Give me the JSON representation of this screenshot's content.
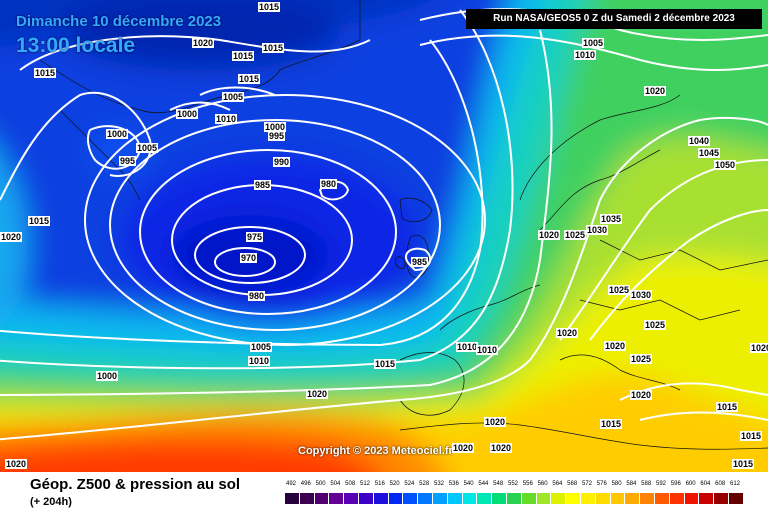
{
  "header": {
    "date_line": "Dimanche 10 décembre 2023",
    "time_line": "13:00 locale",
    "run_info": "Run NASA/GEOS5 0 Z du Samedi 2 décembre 2023"
  },
  "copyright": "Copyright © 2023 Meteociel.fr",
  "footer": {
    "title": "Géop. Z500 & pression au sol",
    "lead_time": "(+ 204h)"
  },
  "legend": {
    "ticks": [
      "492",
      "496",
      "500",
      "504",
      "508",
      "512",
      "516",
      "520",
      "524",
      "528",
      "532",
      "536",
      "540",
      "544",
      "548",
      "552",
      "556",
      "560",
      "564",
      "568",
      "572",
      "576",
      "580",
      "584",
      "588",
      "592",
      "596",
      "600",
      "604",
      "608",
      "612"
    ],
    "colors": [
      "#28003c",
      "#3c0050",
      "#50006e",
      "#640096",
      "#5a00b4",
      "#3c00c8",
      "#1e10dc",
      "#0028f0",
      "#0050ff",
      "#0078ff",
      "#00a0ff",
      "#00c8ff",
      "#00e6e6",
      "#00e6b4",
      "#00dc78",
      "#28d250",
      "#64dc28",
      "#a0e628",
      "#dcf000",
      "#ffff00",
      "#fff000",
      "#ffdc00",
      "#ffc800",
      "#ffaa00",
      "#ff8200",
      "#ff5a00",
      "#ff3200",
      "#f01400",
      "#c80000",
      "#960000",
      "#640000"
    ]
  },
  "isobar_labels": [
    {
      "text": "1015"
    },
    {
      "text": "1020"
    },
    {
      "text": "1015"
    },
    {
      "text": "1015"
    },
    {
      "text": "1015"
    },
    {
      "text": "1005"
    },
    {
      "text": "1000"
    },
    {
      "text": "1010"
    },
    {
      "text": "1000"
    },
    {
      "text": "995"
    },
    {
      "text": "1005"
    },
    {
      "text": "1000"
    },
    {
      "text": "995"
    },
    {
      "text": "990"
    },
    {
      "text": "985"
    },
    {
      "text": "980"
    },
    {
      "text": "975"
    },
    {
      "text": "970"
    },
    {
      "text": "980"
    },
    {
      "text": "985"
    },
    {
      "text": "1015"
    },
    {
      "text": "1020"
    },
    {
      "text": "1005"
    },
    {
      "text": "1010"
    },
    {
      "text": "1000"
    },
    {
      "text": "1020"
    },
    {
      "text": "1015"
    },
    {
      "text": "1010"
    },
    {
      "text": "1010"
    },
    {
      "text": "1020"
    },
    {
      "text": "1020"
    },
    {
      "text": "1020"
    },
    {
      "text": "1015"
    },
    {
      "text": "1005"
    },
    {
      "text": "1010"
    },
    {
      "text": "1020"
    },
    {
      "text": "1040"
    },
    {
      "text": "1045"
    },
    {
      "text": "1050"
    },
    {
      "text": "1035"
    },
    {
      "text": "1020"
    },
    {
      "text": "1025"
    },
    {
      "text": "1030"
    },
    {
      "text": "1025"
    },
    {
      "text": "1030"
    },
    {
      "text": "1025"
    },
    {
      "text": "1020"
    },
    {
      "text": "1020"
    },
    {
      "text": "1025"
    },
    {
      "text": "1020"
    },
    {
      "text": "1015"
    },
    {
      "text": "1015"
    },
    {
      "text": "1015"
    },
    {
      "text": "1015"
    },
    {
      "text": "1020"
    },
    {
      "text": "1020"
    }
  ]
}
